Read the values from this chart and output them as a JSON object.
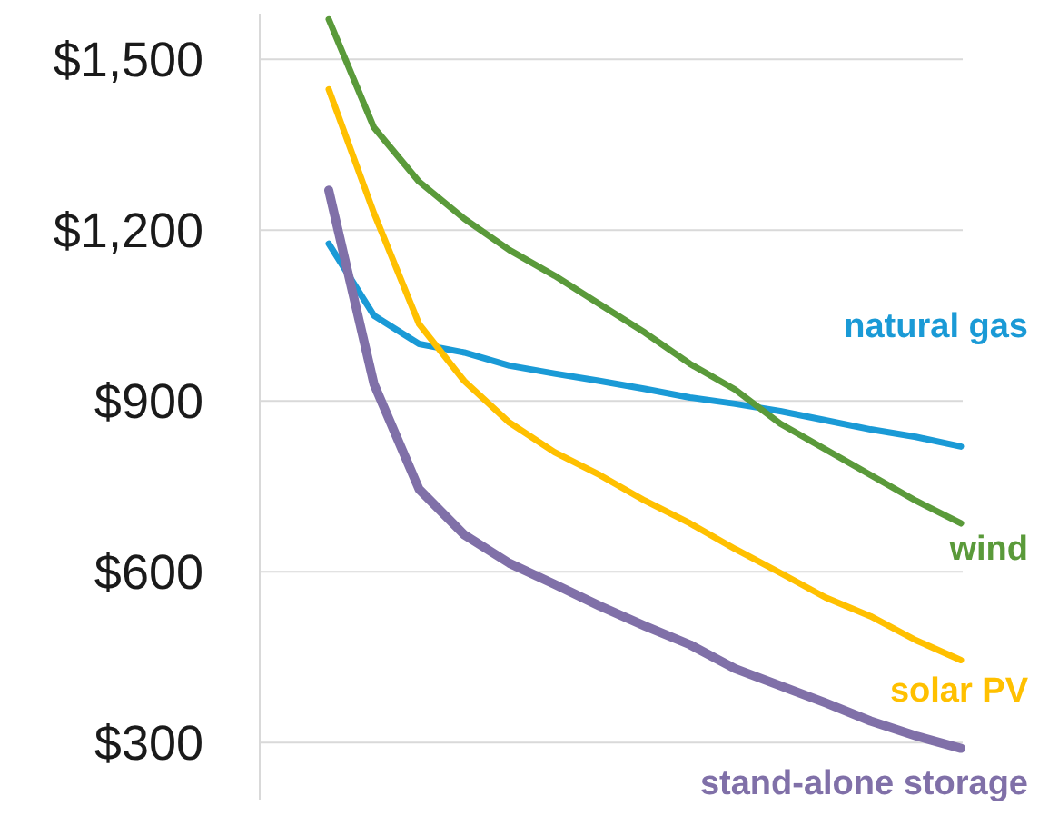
{
  "chart_data": {
    "type": "line",
    "categories": [
      null,
      null,
      null,
      null,
      null,
      null,
      null,
      null,
      null,
      null,
      null,
      null,
      null,
      null,
      null
    ],
    "series": [
      {
        "name": "natural gas",
        "color": "#1a9ad6",
        "values": [
          1176,
          1050,
          1000,
          985,
          962,
          948,
          935,
          921,
          906,
          895,
          882,
          866,
          850,
          837,
          820
        ]
      },
      {
        "name": "wind",
        "color": "#5a9a3a",
        "values": [
          1570,
          1380,
          1285,
          1220,
          1165,
          1120,
          1070,
          1020,
          965,
          920,
          860,
          815,
          770,
          725,
          685
        ]
      },
      {
        "name": "solar PV",
        "color": "#ffc000",
        "values": [
          1447,
          1230,
          1035,
          935,
          862,
          810,
          770,
          725,
          685,
          640,
          598,
          555,
          522,
          480,
          445
        ]
      },
      {
        "name": "stand-alone storage",
        "color": "#8070a8",
        "values": [
          1270,
          930,
          745,
          665,
          615,
          578,
          540,
          505,
          472,
          430,
          400,
          370,
          338,
          312,
          290
        ]
      }
    ],
    "ylim": [
      200,
      1580
    ],
    "yticks": [
      {
        "value": 300,
        "label": "$300"
      },
      {
        "value": 600,
        "label": "$600"
      },
      {
        "value": 900,
        "label": "$900"
      },
      {
        "value": 1200,
        "label": "$1,200"
      },
      {
        "value": 1500,
        "label": "$1,500"
      }
    ],
    "grid": "y",
    "tick_labels": "y",
    "legend": false,
    "marker": "none",
    "line_style": "solid"
  }
}
